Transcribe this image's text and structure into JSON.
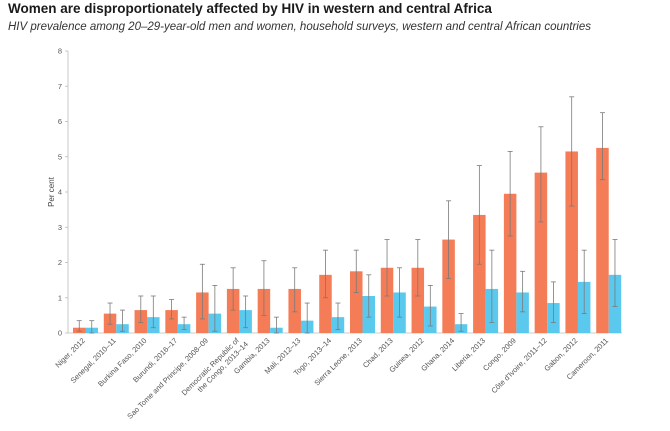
{
  "title": "Women are disproportionately affected by HIV in western and central Africa",
  "subtitle": "HIV prevalence among 20–29-year-old men and women, household surveys, western and central African countries",
  "chart_data": {
    "type": "bar",
    "ylabel": "Per cent",
    "ylim": [
      0,
      8
    ],
    "yticks": [
      0,
      1,
      2,
      3,
      4,
      5,
      6,
      7,
      8
    ],
    "grid": false,
    "categories": [
      [
        "Niger, 2012"
      ],
      [
        "Senegal, 2010–11"
      ],
      [
        "Burkina Faso, 2010"
      ],
      [
        "Burundi, 2016–17"
      ],
      [
        "Sao Tome and Principe, 2008–09"
      ],
      [
        "Democratic Republic of",
        "the Congo, 2013–14"
      ],
      [
        "Gambia, 2013"
      ],
      [
        "Mali, 2012–13"
      ],
      [
        "Togo, 2013–14"
      ],
      [
        "Sierra Leone, 2013"
      ],
      [
        "Chad, 2013"
      ],
      [
        "Guinea, 2012"
      ],
      [
        "Ghana, 2014"
      ],
      [
        "Liberia, 2013"
      ],
      [
        "Congo, 2009"
      ],
      [
        "Côte d'Ivoire, 2011–12"
      ],
      [
        "Gabon, 2012"
      ],
      [
        "Cameroon, 2011"
      ]
    ],
    "series": [
      {
        "color": "#f47c56",
        "values": [
          0.15,
          0.55,
          0.65,
          0.65,
          1.15,
          1.25,
          1.25,
          1.25,
          1.65,
          1.75,
          1.85,
          1.85,
          2.65,
          3.35,
          3.95,
          4.55,
          5.15,
          5.25
        ],
        "err_low": [
          0.05,
          0.25,
          0.3,
          0.4,
          0.4,
          0.65,
          0.5,
          0.6,
          1.0,
          1.15,
          1.05,
          1.05,
          1.55,
          1.95,
          2.75,
          3.15,
          3.6,
          4.35
        ],
        "err_high": [
          0.35,
          0.85,
          1.05,
          0.95,
          1.95,
          1.85,
          2.05,
          1.85,
          2.35,
          2.35,
          2.65,
          2.65,
          3.75,
          4.75,
          5.15,
          5.85,
          6.7,
          6.25
        ]
      },
      {
        "color": "#5bc8ee",
        "values": [
          0.15,
          0.25,
          0.45,
          0.25,
          0.55,
          0.65,
          0.15,
          0.35,
          0.45,
          1.05,
          1.15,
          0.75,
          0.25,
          1.25,
          1.15,
          0.85,
          1.45,
          1.65
        ],
        "err_low": [
          0.0,
          0.05,
          0.15,
          0.1,
          0.05,
          0.15,
          0.0,
          0.0,
          0.1,
          0.45,
          0.45,
          0.2,
          0.05,
          0.3,
          0.6,
          0.3,
          0.55,
          0.75
        ],
        "err_high": [
          0.35,
          0.65,
          1.05,
          0.45,
          1.35,
          1.05,
          0.45,
          0.85,
          0.85,
          1.65,
          1.85,
          1.35,
          0.55,
          2.35,
          1.75,
          1.45,
          2.35,
          2.65
        ]
      }
    ]
  }
}
